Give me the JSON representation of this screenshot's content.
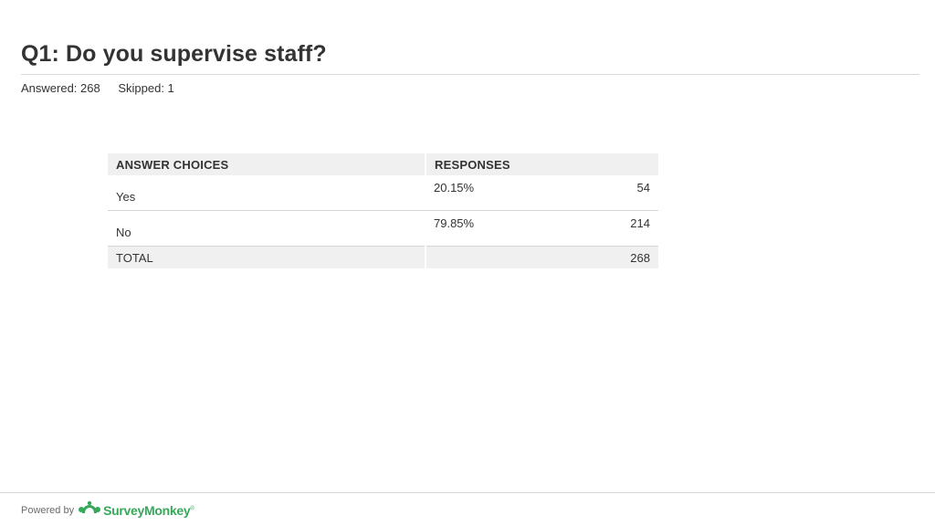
{
  "header": {
    "title": "Q1: Do you supervise staff?",
    "answered": "Answered: 268",
    "skipped": "Skipped: 1"
  },
  "chart_data": {
    "type": "table",
    "columns": [
      "ANSWER CHOICES",
      "RESPONSES"
    ],
    "rows": [
      {
        "choice": "Yes",
        "percent": "20.15%",
        "count": "54"
      },
      {
        "choice": "No",
        "percent": "79.85%",
        "count": "214"
      }
    ],
    "total": {
      "label": "TOTAL",
      "count": "268"
    }
  },
  "footer": {
    "powered_by": "Powered by",
    "brand": "SurveyMonkey",
    "brand_mark": "®",
    "brand_color": "#36a85a",
    "logo_icon": "surveymonkey-logo-icon"
  }
}
